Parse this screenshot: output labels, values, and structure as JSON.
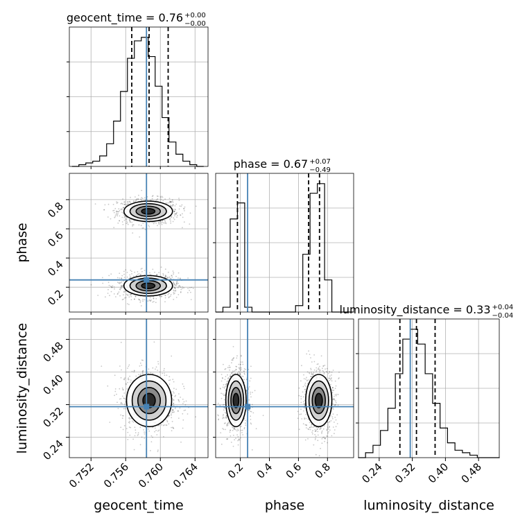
{
  "chart_data": {
    "type": "corner",
    "parameters": [
      "geocent_time",
      "phase",
      "luminosity_distance"
    ],
    "truths": {
      "geocent_time": 0.7584,
      "phase": 0.25,
      "luminosity_distance": 0.315
    },
    "accent_color": "#4682b4",
    "grid": true,
    "titles": [
      {
        "param": "geocent_time",
        "text": "geocent_time = 0.76",
        "sup": "+0.00",
        "sub": "−0.00"
      },
      {
        "param": "phase",
        "text": "phase = 0.67",
        "sup": "+0.07",
        "sub": "−0.49"
      },
      {
        "param": "luminosity_distance",
        "text": "luminosity_distance = 0.33",
        "sup": "+0.04",
        "sub": "−0.04"
      }
    ],
    "axis_labels": {
      "x": [
        "geocent_time",
        "phase",
        "luminosity_distance"
      ],
      "y": [
        "phase",
        "luminosity_distance"
      ]
    },
    "ranges": {
      "geocent_time": [
        0.7495,
        0.7655
      ],
      "phase": [
        0.03,
        0.98
      ],
      "luminosity_distance": [
        0.19,
        0.53
      ]
    },
    "ticks": {
      "geocent_time": [
        "0.752",
        "0.756",
        "0.760",
        "0.764"
      ],
      "phase_x": [
        "0.2",
        "0.4",
        "0.6",
        "0.8"
      ],
      "phase_y": [
        "0.2",
        "0.4",
        "0.6",
        "0.8"
      ],
      "luminosity_distance": [
        "0.24",
        "0.32",
        "0.40",
        "0.48"
      ]
    },
    "quantile_lines": {
      "geocent_time": [
        0.7567,
        0.7587,
        0.7609
      ],
      "phase": [
        0.18,
        0.67,
        0.745
      ],
      "luminosity_distance": [
        0.29,
        0.33,
        0.375
      ]
    },
    "histograms": {
      "geocent_time": {
        "x": [
          0.7502,
          0.751,
          0.7518,
          0.7526,
          0.7534,
          0.7542,
          0.755,
          0.7558,
          0.7566,
          0.7574,
          0.7582,
          0.759,
          0.7598,
          0.7606,
          0.7614,
          0.7622,
          0.763,
          0.7638,
          0.7646
        ],
        "counts": [
          0,
          1,
          2,
          3,
          6,
          13,
          26,
          43,
          62,
          72,
          74,
          63,
          46,
          28,
          14,
          7,
          3,
          1,
          0
        ]
      },
      "phase": {
        "x": [
          0.055,
          0.105,
          0.155,
          0.205,
          0.255,
          0.305,
          0.355,
          0.405,
          0.455,
          0.505,
          0.555,
          0.605,
          0.655,
          0.705,
          0.755,
          0.805,
          0.855,
          0.905,
          0.955
        ],
        "counts": [
          0,
          3,
          58,
          68,
          3,
          0,
          0,
          0,
          0,
          0,
          0,
          4,
          36,
          74,
          80,
          20,
          0,
          0,
          0
        ]
      },
      "luminosity_distance": {
        "x": [
          0.198,
          0.216,
          0.234,
          0.252,
          0.27,
          0.288,
          0.306,
          0.324,
          0.342,
          0.36,
          0.378,
          0.396,
          0.414,
          0.432,
          0.45,
          0.468,
          0.486,
          0.504,
          0.522
        ],
        "counts": [
          0,
          2,
          5,
          11,
          20,
          34,
          48,
          52,
          46,
          34,
          22,
          12,
          6,
          3,
          2,
          1,
          0,
          0,
          0
        ]
      }
    },
    "contours_2d": [
      {
        "x": "geocent_time",
        "y": "phase",
        "blobs": [
          {
            "cx": 0.7586,
            "cy": 0.72,
            "sx": 0.0014,
            "sy": 0.035
          },
          {
            "cx": 0.7586,
            "cy": 0.21,
            "sx": 0.0014,
            "sy": 0.035
          }
        ]
      },
      {
        "x": "geocent_time",
        "y": "luminosity_distance",
        "blobs": [
          {
            "cx": 0.7587,
            "cy": 0.33,
            "sx": 0.0013,
            "sy": 0.032
          }
        ]
      },
      {
        "x": "phase",
        "y": "luminosity_distance",
        "blobs": [
          {
            "cx": 0.17,
            "cy": 0.33,
            "sx": 0.035,
            "sy": 0.032
          },
          {
            "cx": 0.74,
            "cy": 0.33,
            "sx": 0.045,
            "sy": 0.032
          }
        ]
      }
    ]
  }
}
